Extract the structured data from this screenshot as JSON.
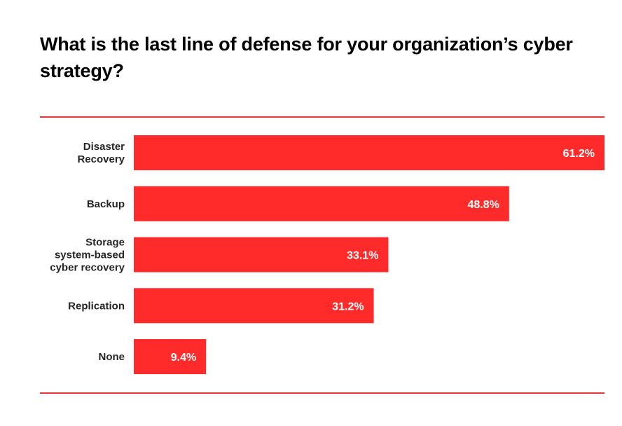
{
  "chart_data": {
    "type": "bar",
    "orientation": "horizontal",
    "title": "What is the last line of defense for your organization’s cyber strategy?",
    "xlabel": "",
    "ylabel": "",
    "unit": "%",
    "xlim": [
      0,
      61.2
    ],
    "grid": false,
    "legend": "none",
    "categories": [
      [
        "Disaster",
        "Recovery"
      ],
      [
        "Backup"
      ],
      [
        "Storage",
        "system-based",
        "cyber recovery"
      ],
      [
        "Replication"
      ],
      [
        "None"
      ]
    ],
    "values": [
      61.2,
      48.8,
      33.1,
      31.2,
      9.4
    ],
    "value_labels": [
      "61.2%",
      "48.8%",
      "33.1%",
      "31.2%",
      "9.4%"
    ]
  },
  "colors": {
    "bar": "#ff2a2a",
    "rule": "#e8363a",
    "label": "#262626",
    "value_label": "#ffffff"
  }
}
